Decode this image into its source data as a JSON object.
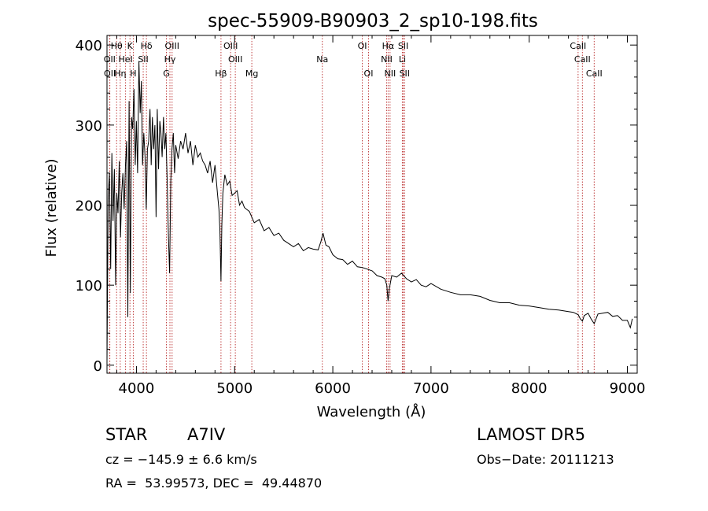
{
  "chart_data": {
    "type": "line",
    "title": "spec-55909-B90903_2_sp10-198.fits",
    "xlabel": "Wavelength (Å)",
    "ylabel": "Flux (relative)",
    "xlim": [
      3700,
      9100
    ],
    "ylim": [
      -10,
      412
    ],
    "xticks": [
      4000,
      5000,
      6000,
      7000,
      8000,
      9000
    ],
    "yticks": [
      0,
      100,
      200,
      300,
      400
    ],
    "line_color": "#000000",
    "marker_color": "#c04040",
    "series": [
      {
        "x": [
          3700,
          3712,
          3725,
          3738,
          3750,
          3762,
          3775,
          3788,
          3800,
          3812,
          3825,
          3838,
          3850,
          3862,
          3875,
          3888,
          3900,
          3912,
          3925,
          3938,
          3950,
          3962,
          3975,
          3988,
          4000,
          4012,
          4025,
          4038,
          4050,
          4062,
          4075,
          4088,
          4100,
          4112,
          4125,
          4138,
          4150,
          4162,
          4175,
          4188,
          4200,
          4212,
          4225,
          4238,
          4250,
          4262,
          4275,
          4288,
          4300,
          4312,
          4325,
          4338,
          4350,
          4362,
          4375,
          4388,
          4400,
          4425,
          4450,
          4475,
          4500,
          4525,
          4550,
          4575,
          4600,
          4625,
          4650,
          4675,
          4700,
          4725,
          4750,
          4775,
          4800,
          4825,
          4840,
          4850,
          4861,
          4870,
          4880,
          4900,
          4925,
          4950,
          4975,
          5000,
          5025,
          5050,
          5075,
          5100,
          5150,
          5200,
          5250,
          5300,
          5350,
          5400,
          5450,
          5500,
          5550,
          5600,
          5650,
          5700,
          5750,
          5800,
          5850,
          5880,
          5900,
          5930,
          5960,
          6000,
          6050,
          6100,
          6150,
          6200,
          6250,
          6300,
          6350,
          6400,
          6450,
          6500,
          6530,
          6550,
          6563,
          6575,
          6600,
          6650,
          6700,
          6750,
          6800,
          6850,
          6900,
          6950,
          7000,
          7100,
          7200,
          7300,
          7400,
          7500,
          7600,
          7700,
          7800,
          7900,
          8000,
          8100,
          8200,
          8300,
          8400,
          8450,
          8500,
          8520,
          8542,
          8560,
          8600,
          8630,
          8662,
          8700,
          8750,
          8800,
          8850,
          8900,
          8950,
          9000,
          9030,
          9050
        ],
        "y": [
          5,
          210,
          240,
          120,
          265,
          180,
          245,
          100,
          215,
          190,
          255,
          160,
          215,
          240,
          195,
          250,
          280,
          60,
          330,
          90,
          310,
          295,
          345,
          250,
          305,
          240,
          380,
          315,
          355,
          250,
          290,
          260,
          195,
          270,
          280,
          320,
          250,
          310,
          270,
          300,
          185,
          320,
          245,
          305,
          290,
          260,
          310,
          270,
          290,
          235,
          165,
          115,
          230,
          270,
          290,
          240,
          275,
          258,
          280,
          270,
          290,
          265,
          280,
          250,
          275,
          260,
          265,
          255,
          250,
          240,
          255,
          228,
          250,
          215,
          195,
          170,
          105,
          175,
          215,
          238,
          225,
          230,
          212,
          215,
          218,
          200,
          205,
          197,
          192,
          178,
          182,
          168,
          172,
          162,
          165,
          156,
          152,
          148,
          152,
          143,
          147,
          145,
          144,
          155,
          165,
          150,
          148,
          138,
          133,
          132,
          126,
          130,
          123,
          122,
          120,
          118,
          112,
          110,
          108,
          100,
          80,
          95,
          112,
          110,
          115,
          108,
          104,
          107,
          100,
          98,
          102,
          95,
          91,
          88,
          88,
          86,
          81,
          78,
          78,
          75,
          74,
          72,
          70,
          69,
          67,
          66,
          63,
          58,
          55,
          62,
          65,
          58,
          52,
          64,
          65,
          66,
          61,
          62,
          56,
          56,
          47,
          58
        ]
      }
    ],
    "line_markers": [
      {
        "label": "Hθ",
        "x": 3798,
        "row": 1
      },
      {
        "label": "K",
        "x": 3934,
        "row": 1
      },
      {
        "label": "Hδ",
        "x": 4102,
        "row": 1
      },
      {
        "label": "OII",
        "x": 3727,
        "row": 2
      },
      {
        "label": "HeI",
        "x": 3889,
        "row": 2
      },
      {
        "label": "SII",
        "x": 4069,
        "row": 2
      },
      {
        "label": "OII",
        "x": 3729,
        "row": 3
      },
      {
        "label": "Hη",
        "x": 3835,
        "row": 3
      },
      {
        "label": "H",
        "x": 3968,
        "row": 3
      },
      {
        "label": "OIII",
        "x": 4363,
        "row": 1
      },
      {
        "label": "Hγ",
        "x": 4341,
        "row": 2
      },
      {
        "label": "G",
        "x": 4305,
        "row": 3
      },
      {
        "label": "OIII",
        "x": 4959,
        "row": 1
      },
      {
        "label": "OIII",
        "x": 5007,
        "row": 2
      },
      {
        "label": "Hβ",
        "x": 4861,
        "row": 3
      },
      {
        "label": "Mg",
        "x": 5175,
        "row": 3
      },
      {
        "label": "Na",
        "x": 5893,
        "row": 2
      },
      {
        "label": "OI",
        "x": 6300,
        "row": 1
      },
      {
        "label": "OI",
        "x": 6364,
        "row": 3
      },
      {
        "label": "Hα",
        "x": 6563,
        "row": 1
      },
      {
        "label": "SII",
        "x": 6717,
        "row": 1
      },
      {
        "label": "NII",
        "x": 6548,
        "row": 2
      },
      {
        "label": "Li",
        "x": 6708,
        "row": 2
      },
      {
        "label": "NII",
        "x": 6583,
        "row": 3
      },
      {
        "label": "SII",
        "x": 6731,
        "row": 3
      },
      {
        "label": "CaII",
        "x": 8498,
        "row": 1
      },
      {
        "label": "CaII",
        "x": 8542,
        "row": 2
      },
      {
        "label": "CaII",
        "x": 8662,
        "row": 3
      }
    ]
  },
  "info": {
    "object_type": "STAR",
    "subclass": "A7IV",
    "survey": "LAMOST DR5",
    "cz_label": "cz = −145.9 ± 6.6 km/s",
    "obs_date_label": "Obs−Date: 20111213",
    "coords_label": "RA =  53.99573, DEC =  49.44870"
  }
}
